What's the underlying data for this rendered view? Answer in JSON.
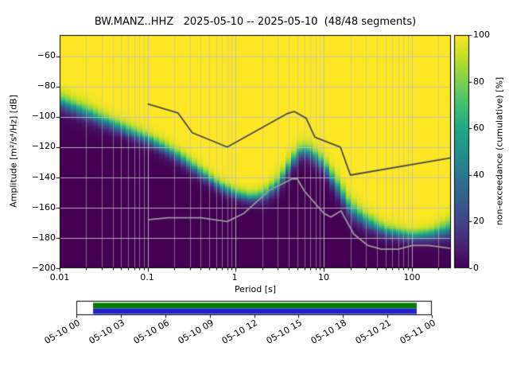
{
  "figure": {
    "title": "BW.MANZ..HHZ   2025-05-10 -- 2025-05-10  (48/48 segments)"
  },
  "chart_data": {
    "type": "heatmap",
    "subtype": "ppsd-cumulative-histogram",
    "station": "BW.MANZ..HHZ",
    "date_range": "2025-05-10 -- 2025-05-10",
    "segments": "48/48",
    "xlabel": "Period [s]",
    "ylabel": "Amplitude [m²/s⁴/Hz] [dB]",
    "x_scale": "log",
    "xlim": [
      0.01,
      277
    ],
    "ylim": [
      -200,
      -46
    ],
    "xticks": {
      "labels": [
        "0.01",
        "0.1",
        "1",
        "10",
        "100"
      ],
      "values": [
        0.01,
        0.1,
        1,
        10,
        100
      ]
    },
    "yticks": {
      "labels": [
        "−60",
        "−80",
        "−100",
        "−120",
        "−140",
        "−160",
        "−180",
        "−200"
      ],
      "values": [
        -60,
        -80,
        -100,
        -120,
        -140,
        -160,
        -180,
        -200
      ]
    },
    "grid": true,
    "grid_color_major": "rgba(190,190,190,0.9)",
    "grid_color_minor": "rgba(190,190,190,0.55)",
    "colorbar": {
      "label": "non-exceedance (cumulative) [%]",
      "tick_labels": [
        "0",
        "20",
        "40",
        "60",
        "80",
        "100"
      ],
      "tick_values": [
        0,
        20,
        40,
        60,
        80,
        100
      ],
      "lim": [
        0,
        100
      ]
    },
    "colormap": {
      "name": "viridis",
      "stops": [
        {
          "t": 0.0,
          "color": "#440154"
        },
        {
          "t": 0.1,
          "color": "#482475"
        },
        {
          "t": 0.2,
          "color": "#414487"
        },
        {
          "t": 0.3,
          "color": "#355f8d"
        },
        {
          "t": 0.4,
          "color": "#2a788e"
        },
        {
          "t": 0.5,
          "color": "#21918c"
        },
        {
          "t": 0.6,
          "color": "#22a884"
        },
        {
          "t": 0.7,
          "color": "#44bf70"
        },
        {
          "t": 0.8,
          "color": "#7ad151"
        },
        {
          "t": 0.9,
          "color": "#bddf26"
        },
        {
          "t": 1.0,
          "color": "#fde725"
        }
      ]
    },
    "distribution": {
      "comment": "PSD value distribution per period: median dB and spread (dB). Cell color = fraction of the 48 segments with PSD below that level (non-exceedance).",
      "periods": [
        0.01,
        0.021,
        0.048,
        0.1,
        0.21,
        0.38,
        0.66,
        1.0,
        1.5,
        2.1,
        3.1,
        4.2,
        5.5,
        7.2,
        10,
        14.5,
        20,
        30,
        50,
        100,
        160,
        277
      ],
      "median_db": [
        -90,
        -98,
        -107,
        -115,
        -125,
        -136,
        -146,
        -151,
        -153.5,
        -152,
        -144,
        -131,
        -122,
        -124,
        -132,
        -147,
        -161,
        -169,
        -175.5,
        -179,
        -178,
        -174
      ],
      "sigma_db": [
        5,
        5,
        4,
        4,
        4,
        4,
        3.5,
        3.5,
        3.5,
        4,
        5,
        5,
        4.5,
        5,
        5,
        6,
        6,
        5,
        4,
        3.5,
        4,
        6
      ]
    },
    "noise_models": {
      "nhnm_color": "#4a4a4a",
      "nlnm_color": "#9a9a9a",
      "nhnm": [
        [
          0.1,
          -91.5
        ],
        [
          0.22,
          -97.4
        ],
        [
          0.32,
          -110.5
        ],
        [
          0.8,
          -120.0
        ],
        [
          3.8,
          -98.0
        ],
        [
          4.6,
          -96.5
        ],
        [
          6.3,
          -101.0
        ],
        [
          7.9,
          -113.5
        ],
        [
          15.4,
          -120.0
        ],
        [
          20.0,
          -138.5
        ],
        [
          277,
          -127.1
        ]
      ],
      "nlnm": [
        [
          0.1,
          -168.0
        ],
        [
          0.17,
          -166.7
        ],
        [
          0.4,
          -166.7
        ],
        [
          0.8,
          -169.2
        ],
        [
          1.24,
          -163.7
        ],
        [
          2.4,
          -148.6
        ],
        [
          4.3,
          -141.1
        ],
        [
          5.0,
          -141.1
        ],
        [
          6.0,
          -149.0
        ],
        [
          10.0,
          -163.8
        ],
        [
          12.0,
          -166.2
        ],
        [
          15.6,
          -162.1
        ],
        [
          21.9,
          -177.5
        ],
        [
          31.6,
          -185.0
        ],
        [
          45.0,
          -187.5
        ],
        [
          70.0,
          -187.5
        ],
        [
          101.0,
          -185.0
        ],
        [
          154.0,
          -185.0
        ],
        [
          277,
          -186.9
        ]
      ]
    }
  },
  "timeline": {
    "tick_labels": [
      "05-10 00",
      "05-10 03",
      "05-10 06",
      "05-10 09",
      "05-10 12",
      "05-10 15",
      "05-10 18",
      "05-10 21",
      "05-11 00"
    ],
    "coverage": [
      0.047,
      0.9575
    ],
    "top_bar_color": "#007d00",
    "bottom_bar_color": "#2222cc",
    "box_border_color": "#000000"
  }
}
